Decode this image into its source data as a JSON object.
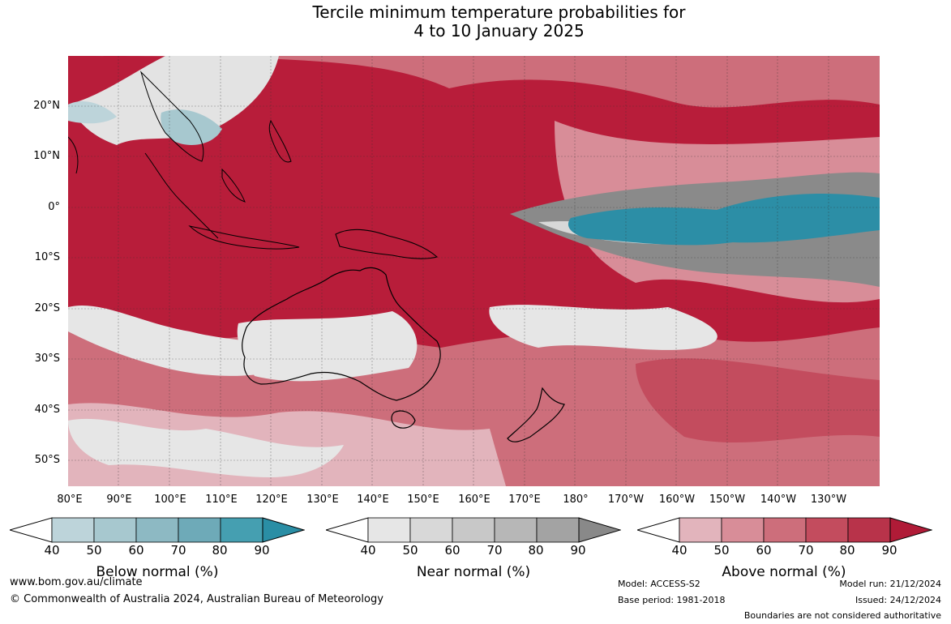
{
  "title": {
    "line1": "Tercile minimum temperature probabilities for",
    "line2": "4 to 10 January 2025"
  },
  "map": {
    "lat_labels": [
      "20°N",
      "10°N",
      "0°",
      "10°S",
      "20°S",
      "30°S",
      "40°S",
      "50°S"
    ],
    "lon_labels": [
      "80°E",
      "90°E",
      "100°E",
      "110°E",
      "120°E",
      "130°E",
      "140°E",
      "150°E",
      "160°E",
      "170°E",
      "180°",
      "170°W",
      "160°W",
      "150°W",
      "140°W",
      "130°W"
    ],
    "colors": {
      "above": "#b81d3a",
      "above_light": "#e9b5bd",
      "near": "#8a8a8a",
      "near_light": "#e3e3e3",
      "below": "#2c8ea6",
      "land_outline": "#000000"
    }
  },
  "colorbars": [
    {
      "id": "below",
      "label": "Below normal (%)",
      "ticks": [
        "40",
        "50",
        "60",
        "70",
        "80",
        "90"
      ],
      "colors": [
        "#bdd4da",
        "#a7c8cf",
        "#8db9c3",
        "#6eaab8",
        "#459fb1",
        "#2a8ea5"
      ]
    },
    {
      "id": "near",
      "label": "Near normal (%)",
      "ticks": [
        "40",
        "50",
        "60",
        "70",
        "80",
        "90"
      ],
      "colors": [
        "#e6e6e6",
        "#d8d8d8",
        "#c8c8c8",
        "#b7b7b7",
        "#a3a3a3",
        "#898989"
      ]
    },
    {
      "id": "above",
      "label": "Above normal (%)",
      "ticks": [
        "40",
        "50",
        "60",
        "70",
        "80",
        "90"
      ],
      "colors": [
        "#e2b4bc",
        "#d88d98",
        "#cd6e7b",
        "#c34c5e",
        "#b8334a",
        "#b01b37"
      ]
    }
  ],
  "footer": {
    "website": "www.bom.gov.au/climate",
    "copyright": "© Commonwealth of Australia 2024, Australian Bureau of Meteorology",
    "model": "Model: ACCESS-S2",
    "base_period": "Base period: 1981-2018",
    "model_run": "Model run: 21/12/2024",
    "issued": "Issued: 24/12/2024",
    "disclaimer": "Boundaries are not considered authoritative"
  }
}
